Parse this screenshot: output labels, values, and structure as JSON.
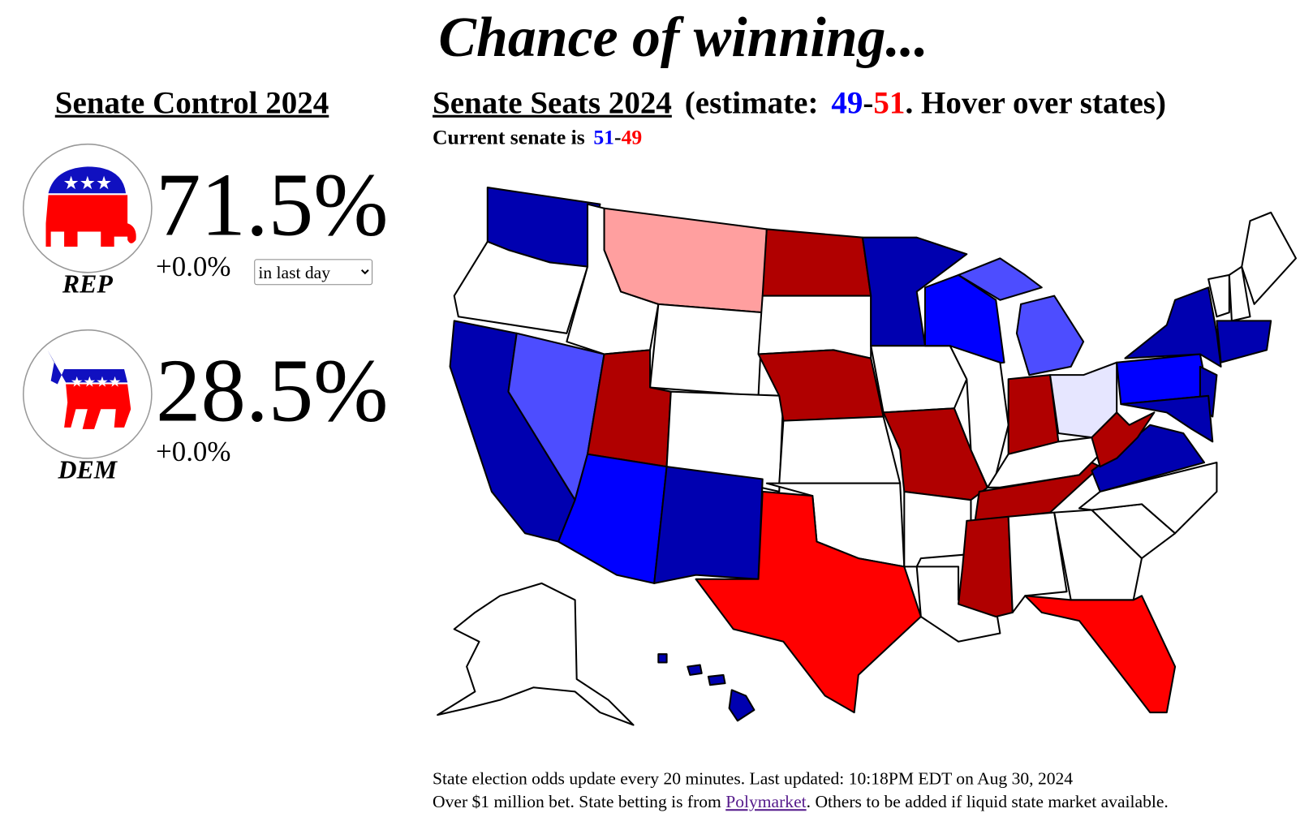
{
  "header": {
    "title": "Chance of winning..."
  },
  "control": {
    "title": "Senate Control 2024",
    "period": "in last day",
    "parties": [
      {
        "label": "REP",
        "chance": "71.5%",
        "change": "+0.0%"
      },
      {
        "label": "DEM",
        "chance": "28.5%",
        "change": "+0.0%"
      }
    ]
  },
  "seats": {
    "title": "Senate Seats 2024",
    "estimate_prefix": "(estimate:",
    "estimate_dem": "49",
    "separator": "-",
    "estimate_rep": "51",
    "estimate_suffix": ". Hover over states)",
    "current_prefix": "Current senate is",
    "current_dem": "51",
    "current_rep": "49"
  },
  "footer": {
    "line1": "State election odds update every 20 minutes. Last updated: 10:18PM EDT on Aug 30, 2024",
    "line2_prefix": "Over $1 million bet. State betting is from",
    "link": "Polymarket",
    "line2_suffix": ". Others to be added if liquid state market available."
  }
}
